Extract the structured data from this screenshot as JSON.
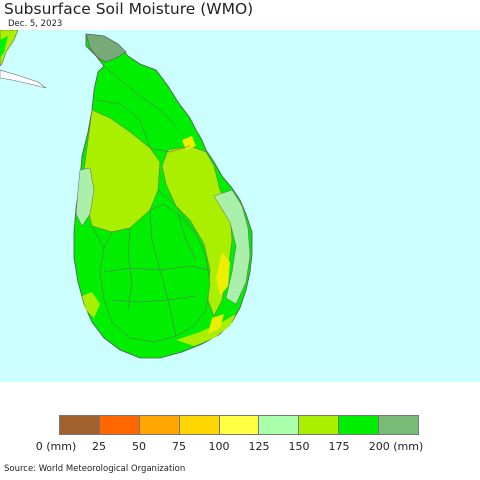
{
  "title": "Subsurface Soil Moisture (WMO)",
  "date": "Dec. 5, 2023",
  "map": {
    "region": "Sri Lanka",
    "ocean_color": "#ccffff",
    "land_colors": [
      "#00ee00",
      "#aaee00",
      "#aaf0aa",
      "#eeee00",
      "#77aa77"
    ]
  },
  "legend": {
    "labels": [
      "0 (mm)",
      "25",
      "50",
      "75",
      "100",
      "125",
      "150",
      "175",
      "200 (mm)"
    ],
    "colors": [
      "#a0612f",
      "#ff6600",
      "#ffa500",
      "#ffd700",
      "#ffff44",
      "#aaffaa",
      "#aaee00",
      "#00ee00",
      "#77bb77"
    ]
  },
  "source": "Source: World Meteorological Organization"
}
